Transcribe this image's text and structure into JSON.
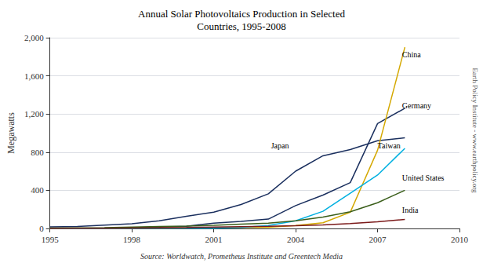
{
  "chart_data": {
    "type": "line",
    "title": "Annual Solar Photovoltaics Production in Selected\nCountries, 1995-2008",
    "ylabel": "Megawatts",
    "source": "Source: Worldwatch, Prometheus Institute and Greentech Media",
    "watermark": "Earth Policy Institute - www.earthpolicy.org",
    "x": [
      1995,
      1996,
      1997,
      1998,
      1999,
      2000,
      2001,
      2002,
      2003,
      2004,
      2005,
      2006,
      2007,
      2008
    ],
    "xlim": [
      1995,
      2010
    ],
    "xticks": [
      1995,
      1998,
      2001,
      2004,
      2007,
      2010
    ],
    "ylim": [
      0,
      2000
    ],
    "yticks": [
      0,
      400,
      800,
      {
        "value": 1200,
        "label": "1,200"
      },
      {
        "value": 1600,
        "label": "1,600"
      },
      {
        "value": 2000,
        "label": "2,000"
      }
    ],
    "grid": true,
    "series": [
      {
        "name": "Japan",
        "color": "#1a2f5e",
        "values": [
          16,
          21,
          35,
          49,
          80,
          128,
          171,
          251,
          363,
          601,
          762,
          827,
          920,
          950
        ]
      },
      {
        "name": "Germany",
        "color": "#1a2f5e",
        "values": [
          2,
          3,
          5,
          8,
          14,
          23,
          56,
          75,
          98,
          240,
          350,
          480,
          1100,
          1260
        ]
      },
      {
        "name": "China",
        "color": "#d4a800",
        "values": [
          1,
          2,
          3,
          4,
          5,
          6,
          8,
          10,
          12,
          30,
          60,
          170,
          820,
          1900
        ]
      },
      {
        "name": "Taiwan",
        "color": "#00b0e0",
        "values": [
          0,
          0,
          0,
          0,
          1,
          2,
          4,
          10,
          30,
          80,
          180,
          370,
          560,
          840
        ]
      },
      {
        "name": "United States",
        "color": "#3a5e1a",
        "values": [
          4,
          6,
          9,
          15,
          21,
          25,
          32,
          45,
          55,
          80,
          120,
          175,
          270,
          400
        ]
      },
      {
        "name": "India",
        "color": "#7b1a1a",
        "values": [
          1,
          2,
          3,
          5,
          7,
          10,
          15,
          18,
          22,
          28,
          38,
          52,
          70,
          95
        ]
      }
    ],
    "annotations": [
      {
        "text": "China",
        "x": 2007.9,
        "y": 1820
      },
      {
        "text": "Germany",
        "x": 2007.9,
        "y": 1290
      },
      {
        "text": "Japan",
        "x": 2003.1,
        "y": 870
      },
      {
        "text": "Taiwan",
        "x": 2007.0,
        "y": 870
      },
      {
        "text": "United States",
        "x": 2007.9,
        "y": 530
      },
      {
        "text": "India",
        "x": 2007.9,
        "y": 190
      }
    ]
  }
}
